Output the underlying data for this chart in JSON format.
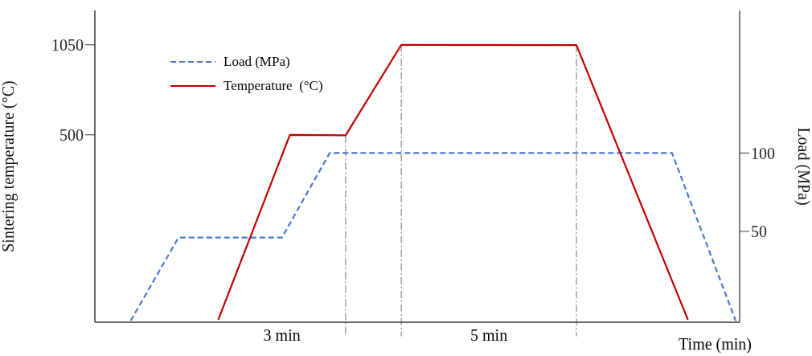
{
  "chart_data": {
    "type": "line",
    "xlabel": "Time (min)",
    "ylabel": "Sintering temperature (°C)",
    "y2label": "Load (MPa)",
    "categories": [
      null,
      null,
      null,
      null,
      null,
      null,
      null,
      null,
      null,
      null,
      null,
      null,
      null,
      null,
      null,
      null,
      null,
      null,
      null,
      null,
      null,
      null,
      null,
      null,
      null,
      null,
      null,
      null,
      null,
      null,
      null,
      null,
      null,
      null,
      null,
      null,
      null,
      null,
      null,
      null,
      null,
      null,
      null,
      null,
      null,
      null,
      null,
      null,
      null,
      null,
      null,
      null,
      null,
      null,
      null,
      null,
      null,
      null,
      null,
      null,
      null,
      null,
      null,
      null,
      null,
      null,
      null,
      null,
      null,
      null,
      null,
      null,
      null,
      null,
      null,
      null,
      null,
      null,
      null,
      null,
      null
    ],
    "series": [
      {
        "name": "Load (MPa)",
        "color": "#4a78d0",
        "axis": "y2",
        "line_style": "dashed",
        "values": [
          null,
          null,
          null,
          null,
          -7,
          null,
          null,
          null,
          null,
          null,
          46,
          null,
          null,
          null,
          null,
          null,
          null,
          null,
          null,
          null,
          null,
          null,
          null,
          46,
          null,
          null,
          null,
          null,
          null,
          100,
          null,
          null,
          null,
          null,
          null,
          null,
          null,
          null,
          null,
          null,
          null,
          null,
          null,
          null,
          null,
          null,
          null,
          null,
          null,
          null,
          null,
          null,
          null,
          null,
          null,
          null,
          null,
          null,
          null,
          null,
          null,
          null,
          null,
          null,
          null,
          null,
          null,
          null,
          null,
          null,
          null,
          null,
          100,
          null,
          null,
          null,
          null,
          null,
          null,
          null,
          -7
        ]
      },
      {
        "name": "Temperature  (°C)",
        "color": "#c00000",
        "line_style": "solid",
        "values": [
          null,
          null,
          null,
          null,
          null,
          null,
          null,
          null,
          null,
          null,
          null,
          null,
          null,
          null,
          null,
          -630,
          null,
          null,
          null,
          null,
          null,
          null,
          null,
          null,
          500,
          null,
          null,
          null,
          null,
          null,
          null,
          497,
          null,
          null,
          null,
          null,
          null,
          null,
          1050,
          null,
          null,
          null,
          null,
          null,
          null,
          null,
          null,
          null,
          null,
          null,
          null,
          null,
          null,
          null,
          null,
          null,
          null,
          null,
          null,
          null,
          1048,
          null,
          null,
          null,
          null,
          null,
          null,
          null,
          null,
          null,
          null,
          null,
          null,
          null,
          -630,
          null,
          null,
          null,
          null,
          null,
          null
        ]
      }
    ],
    "ylim": [
      -645,
      1260
    ],
    "yticks": [
      500,
      1050
    ],
    "y2lim": [
      -8,
      191
    ],
    "y2ticks": [
      50,
      100
    ],
    "annotations": [
      "3 min",
      "5 min"
    ],
    "legend": "top left",
    "grid": false,
    "marker": "none",
    "tick_labels": "y"
  }
}
